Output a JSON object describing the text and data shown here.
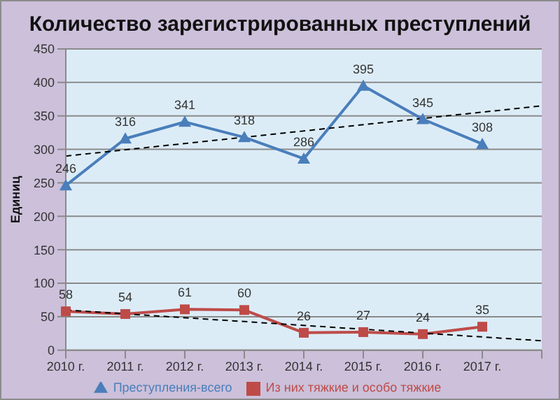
{
  "chart_data": {
    "type": "line",
    "title": "Количество зарегистрированных преступлений",
    "ylabel": "Единиц",
    "categories": [
      "2010 г.",
      "2011 г.",
      "2012 г.",
      "2013 г.",
      "2014 г.",
      "2015 г.",
      "2016 г.",
      "2017 г.",
      null
    ],
    "ylim": [
      0,
      450
    ],
    "yticks": [
      0,
      50,
      100,
      150,
      200,
      250,
      300,
      350,
      400,
      450
    ],
    "grid": "y",
    "legend": "bottom",
    "series": [
      {
        "name": "Преступления-всего",
        "color": "#4a7ebb",
        "marker": "triangle",
        "values": [
          246,
          316,
          341,
          318,
          286,
          395,
          345,
          308,
          null
        ],
        "value_labels": [
          "246",
          "316",
          "341",
          "318",
          "286",
          "395",
          "345",
          "308",
          null
        ]
      },
      {
        "name": "Из них тяжкие и особо тяжкие",
        "color": "#be4b48",
        "marker": "square",
        "values": [
          58,
          54,
          61,
          60,
          26,
          27,
          24,
          35,
          null
        ],
        "value_labels": [
          "58",
          "54",
          "61",
          "60",
          "26",
          "27",
          "24",
          "35",
          null
        ]
      },
      {
        "type": "line",
        "color": "#000000",
        "line_style": "dashed",
        "marker": "none",
        "values": [
          290,
          null,
          null,
          null,
          null,
          null,
          null,
          null,
          365
        ]
      },
      {
        "type": "line",
        "color": "#000000",
        "line_style": "dashed",
        "marker": "none",
        "values": [
          60,
          null,
          null,
          null,
          null,
          null,
          null,
          null,
          14
        ]
      }
    ]
  }
}
